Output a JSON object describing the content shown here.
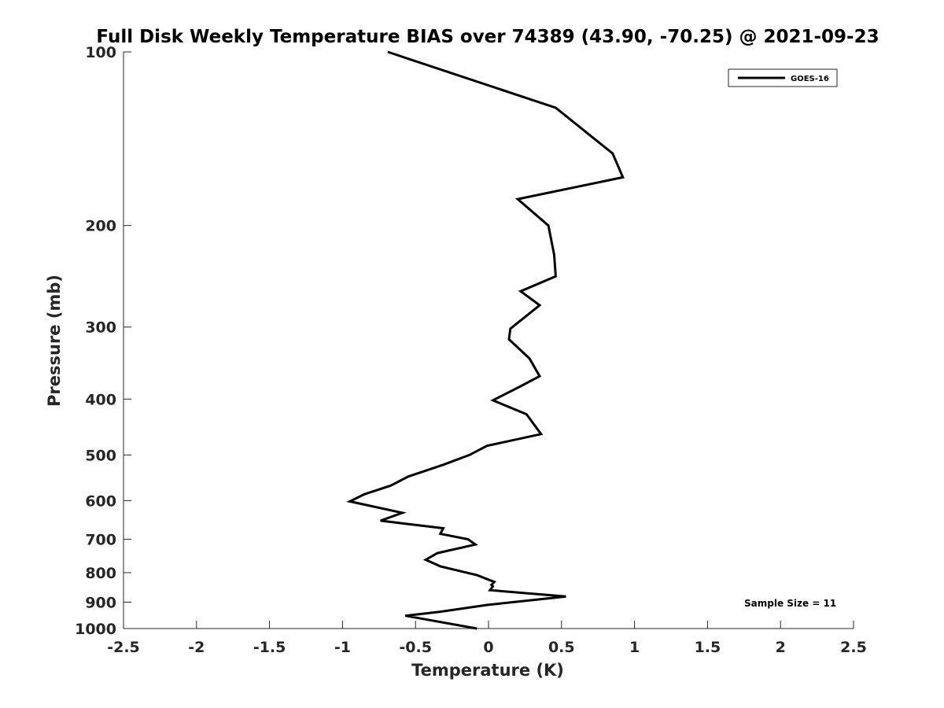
{
  "chart_data": {
    "type": "line",
    "title": "Full Disk Weekly Temperature BIAS over 74389 (43.90, -70.25) @ 2021-09-23",
    "xlabel": "Temperature (K)",
    "ylabel": "Pressure (mb)",
    "xlim": [
      -2.5,
      2.5
    ],
    "ylim": [
      100,
      1000
    ],
    "y_scale": "log",
    "y_reversed": true,
    "x_ticks": [
      "-2.5",
      "-2",
      "-1.5",
      "-1",
      "-0.5",
      "0",
      "0.5",
      "1",
      "1.5",
      "2",
      "2.5"
    ],
    "y_ticks": [
      "100",
      "200",
      "300",
      "400",
      "500",
      "600",
      "700",
      "800",
      "900",
      "1000"
    ],
    "grid": false,
    "legend_position": "top-right",
    "annotation": "Sample Size = 11",
    "series": [
      {
        "name": "GOES-16",
        "color": "#000000",
        "points": [
          [
            -0.69,
            100
          ],
          [
            0.46,
            125
          ],
          [
            0.85,
            150
          ],
          [
            0.92,
            165
          ],
          [
            0.2,
            180
          ],
          [
            0.41,
            200
          ],
          [
            0.45,
            225
          ],
          [
            0.46,
            245
          ],
          [
            0.22,
            260
          ],
          [
            0.35,
            275
          ],
          [
            0.15,
            302
          ],
          [
            0.14,
            315
          ],
          [
            0.28,
            340
          ],
          [
            0.35,
            365
          ],
          [
            0.22,
            380
          ],
          [
            0.03,
            402
          ],
          [
            0.26,
            425
          ],
          [
            0.36,
            460
          ],
          [
            -0.01,
            482
          ],
          [
            -0.13,
            500
          ],
          [
            -0.31,
            520
          ],
          [
            -0.55,
            545
          ],
          [
            -0.67,
            565
          ],
          [
            -0.85,
            585
          ],
          [
            -0.95,
            602
          ],
          [
            -0.59,
            630
          ],
          [
            -0.74,
            650
          ],
          [
            -0.31,
            670
          ],
          [
            -0.33,
            685
          ],
          [
            -0.14,
            700
          ],
          [
            -0.09,
            715
          ],
          [
            -0.35,
            740
          ],
          [
            -0.43,
            760
          ],
          [
            -0.33,
            780
          ],
          [
            -0.08,
            808
          ],
          [
            0.04,
            830
          ],
          [
            0.02,
            840
          ],
          [
            0.03,
            845
          ],
          [
            0.01,
            858
          ],
          [
            0.53,
            880
          ],
          [
            -0.01,
            910
          ],
          [
            -0.33,
            935
          ],
          [
            -0.57,
            950
          ],
          [
            -0.08,
            1000
          ]
        ]
      }
    ]
  }
}
